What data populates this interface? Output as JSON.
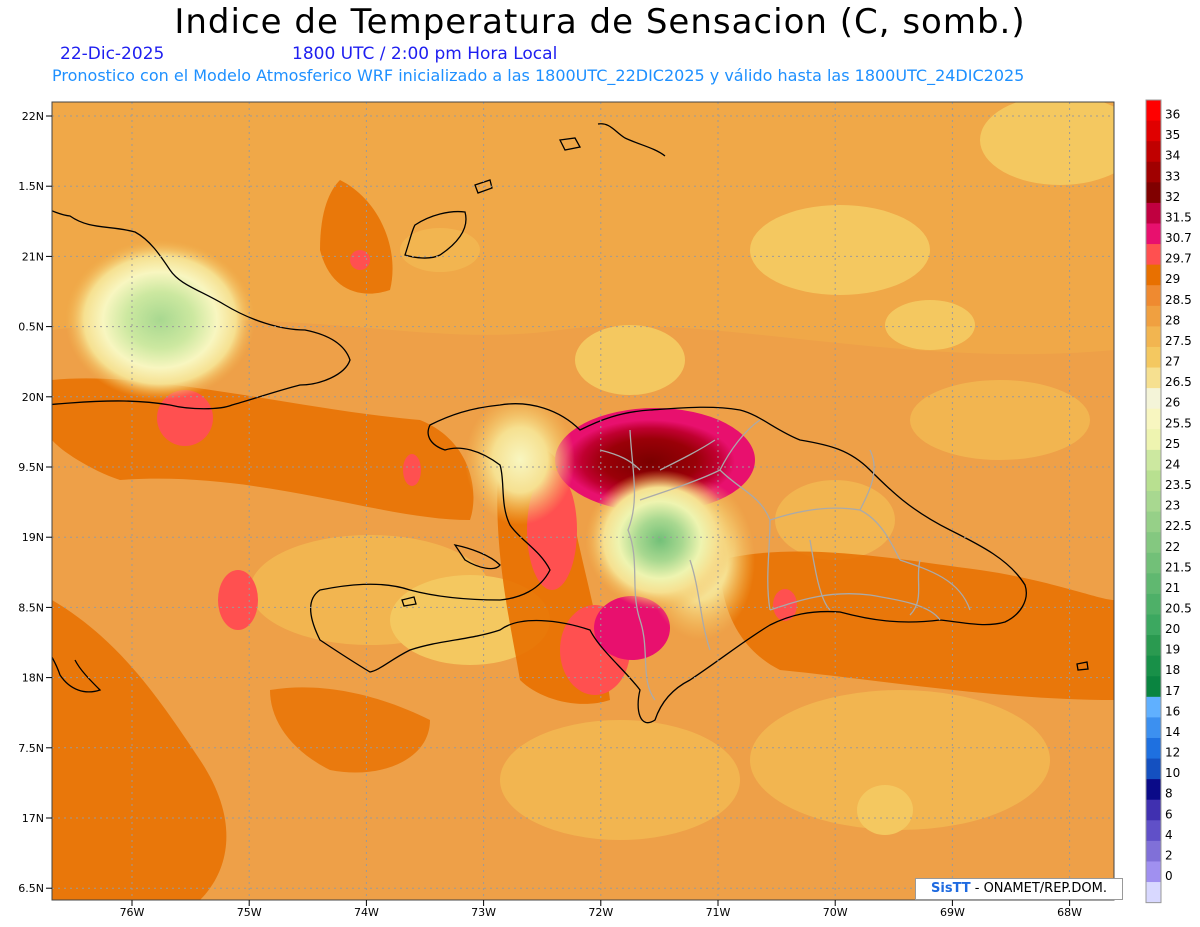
{
  "header": {
    "title": "Indice de Temperatura de Sensacion (C, somb.)",
    "date": "22-Dic-2025",
    "time": "1800 UTC / 2:00 pm Hora Local",
    "subtitle": "Pronostico con el Modelo Atmosferico WRF inicializado a las 1800UTC_22DIC2025 y válido hasta las  1800UTC_24DIC2025"
  },
  "axes": {
    "lat_labels": [
      "22N",
      "1.5N",
      "21N",
      "0.5N",
      "20N",
      "9.5N",
      "19N",
      "8.5N",
      "18N",
      "7.5N",
      "17N",
      "6.5N"
    ],
    "lon_labels": [
      "76W",
      "75W",
      "74W",
      "73W",
      "72W",
      "71W",
      "70W",
      "69W",
      "68W"
    ]
  },
  "legend": {
    "labels": [
      "36",
      "35",
      "34",
      "33",
      "32",
      "31.5",
      "30.7",
      "29.7",
      "29",
      "28.5",
      "28",
      "27.5",
      "27",
      "26.5",
      "26",
      "25.5",
      "25",
      "24",
      "23.5",
      "23",
      "22.5",
      "22",
      "21.5",
      "21",
      "20.5",
      "20",
      "19",
      "18",
      "17",
      "16",
      "14",
      "12",
      "10",
      "8",
      "6",
      "4",
      "2",
      "0"
    ],
    "colors": [
      "#ff0000",
      "#e00000",
      "#c00000",
      "#a00000",
      "#800000",
      "#c00040",
      "#e8106e",
      "#ff5050",
      "#e87000",
      "#ef8a30",
      "#f0a040",
      "#f2b550",
      "#f4c860",
      "#f6e090",
      "#f4f4d8",
      "#f8f6c0",
      "#eef4b0",
      "#cce8a0",
      "#b8e090",
      "#a8d890",
      "#96d088",
      "#84c880",
      "#72c078",
      "#60b870",
      "#4eb068",
      "#3ca860",
      "#2a9a50",
      "#189048",
      "#0a8440",
      "#60b0ff",
      "#3c90f0",
      "#1e70e0",
      "#1450c0",
      "#0a0a88",
      "#4030b0",
      "#6050c8",
      "#8070d8",
      "#a090f0",
      "#d8d8ff"
    ]
  },
  "credit": {
    "logo": "SisTT",
    "text": "- ONAMET/REP.DOM."
  }
}
